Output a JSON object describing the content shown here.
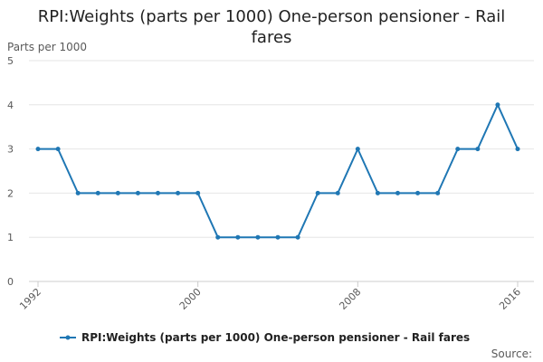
{
  "chart_data": {
    "type": "line",
    "title": "RPI:Weights (parts per 1000) One-person pensioner - Rail fares",
    "title_lines": [
      "RPI:Weights (parts per 1000) One-person pensioner - Rail",
      "fares"
    ],
    "ylabel": "Parts per 1000",
    "xlabel": "",
    "ylim": [
      0,
      5
    ],
    "yticks": [
      0,
      1,
      2,
      3,
      4,
      5
    ],
    "xlim": [
      1992,
      2016
    ],
    "xticks": [
      1992,
      2000,
      2008,
      2016
    ],
    "grid": true,
    "legend_position": "bottom",
    "series": [
      {
        "name": "RPI:Weights (parts per 1000) One-person pensioner - Rail fares",
        "color": "#1f77b4",
        "x": [
          1992,
          1993,
          1994,
          1995,
          1996,
          1997,
          1998,
          1999,
          2000,
          2001,
          2002,
          2003,
          2004,
          2005,
          2006,
          2007,
          2008,
          2009,
          2010,
          2011,
          2012,
          2013,
          2014,
          2015,
          2016
        ],
        "values": [
          3,
          3,
          2,
          2,
          2,
          2,
          2,
          2,
          2,
          1,
          1,
          1,
          1,
          1,
          2,
          2,
          3,
          2,
          2,
          2,
          2,
          3,
          3,
          4,
          3
        ]
      }
    ],
    "source_label": "Source:"
  }
}
